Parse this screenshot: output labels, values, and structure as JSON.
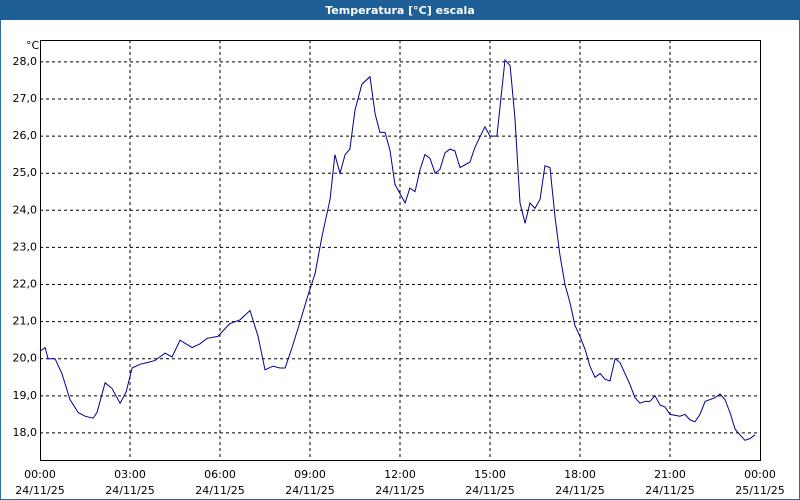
{
  "chart_data": {
    "type": "line",
    "title": "Temperatura [°C] escala",
    "y_unit": "°C",
    "x": [
      0,
      0.17,
      0.27,
      0.5,
      0.73,
      1,
      1.27,
      1.5,
      1.77,
      1.9,
      2.17,
      2.4,
      2.67,
      2.87,
      3.07,
      3.33,
      3.6,
      3.83,
      4.17,
      4.4,
      4.67,
      5.07,
      5.33,
      5.57,
      5.93,
      6.33,
      6.67,
      7,
      7.27,
      7.5,
      7.77,
      8,
      8.17,
      8.4,
      8.67,
      8.93,
      9.17,
      9.4,
      9.67,
      9.83,
      10,
      10.17,
      10.33,
      10.5,
      10.73,
      11,
      11.17,
      11.33,
      11.5,
      11.67,
      11.83,
      12.17,
      12.33,
      12.5,
      12.67,
      12.83,
      13,
      13.17,
      13.33,
      13.5,
      13.67,
      13.83,
      14,
      14.33,
      14.5,
      14.83,
      15,
      15.23,
      15.5,
      15.67,
      15.83,
      16,
      16.17,
      16.33,
      16.5,
      16.67,
      16.83,
      17,
      17.17,
      17.33,
      17.5,
      17.67,
      17.83,
      18,
      18.17,
      18.33,
      18.5,
      18.67,
      18.83,
      19,
      19.17,
      19.33,
      19.5,
      19.67,
      19.83,
      20,
      20.17,
      20.33,
      20.5,
      20.67,
      20.83,
      21,
      21.33,
      21.5,
      21.67,
      21.83,
      22,
      22.17,
      22.5,
      22.67,
      22.83,
      23,
      23.17,
      23.33,
      23.5,
      23.67,
      23.83
    ],
    "series": [
      {
        "name": "Temperatura",
        "color": "#000090",
        "values": [
          20.2,
          20.3,
          20.0,
          20.0,
          19.6,
          18.9,
          18.55,
          18.45,
          18.4,
          18.55,
          19.35,
          19.2,
          18.8,
          19.1,
          19.75,
          19.85,
          19.9,
          19.95,
          20.15,
          20.05,
          20.5,
          20.3,
          20.4,
          20.55,
          20.6,
          20.95,
          21.05,
          21.3,
          20.6,
          19.7,
          19.8,
          19.75,
          19.75,
          20.3,
          21.0,
          21.7,
          22.3,
          23.3,
          24.3,
          25.5,
          25.0,
          25.5,
          25.65,
          26.7,
          27.4,
          27.6,
          26.6,
          26.1,
          26.1,
          25.6,
          24.7,
          24.2,
          24.6,
          24.5,
          25.1,
          25.5,
          25.4,
          25.0,
          25.1,
          25.55,
          25.65,
          25.6,
          25.15,
          25.3,
          25.7,
          26.25,
          26.0,
          26.0,
          28.05,
          27.9,
          26.5,
          24.2,
          23.65,
          24.2,
          24.05,
          24.3,
          25.2,
          25.15,
          23.8,
          22.8,
          22.0,
          21.5,
          20.9,
          20.6,
          20.25,
          19.8,
          19.5,
          19.6,
          19.45,
          19.4,
          20.0,
          19.9,
          19.6,
          19.3,
          18.95,
          18.8,
          18.85,
          18.85,
          19.0,
          18.75,
          18.7,
          18.5,
          18.45,
          18.5,
          18.35,
          18.3,
          18.5,
          18.85,
          18.95,
          19.05,
          18.9,
          18.55,
          18.1,
          17.95,
          17.8,
          17.85,
          17.95
        ]
      }
    ],
    "xlim": [
      0,
      24
    ],
    "ylim": [
      17.27,
      28.59
    ],
    "xticks": [
      {
        "value": 0,
        "label": "00:00",
        "date": "24/11/25"
      },
      {
        "value": 3,
        "label": "03:00",
        "date": "24/11/25"
      },
      {
        "value": 6,
        "label": "06:00",
        "date": "24/11/25"
      },
      {
        "value": 9,
        "label": "09:00",
        "date": "24/11/25"
      },
      {
        "value": 12,
        "label": "12:00",
        "date": "24/11/25"
      },
      {
        "value": 15,
        "label": "15:00",
        "date": "24/11/25"
      },
      {
        "value": 18,
        "label": "18:00",
        "date": "24/11/25"
      },
      {
        "value": 21,
        "label": "21:00",
        "date": "24/11/25"
      },
      {
        "value": 24,
        "label": "00:00",
        "date": "25/11/25"
      }
    ],
    "yticks": [
      {
        "value": 18,
        "label": "18,0"
      },
      {
        "value": 19,
        "label": "19,0"
      },
      {
        "value": 20,
        "label": "20,0"
      },
      {
        "value": 21,
        "label": "21,0"
      },
      {
        "value": 22,
        "label": "22,0"
      },
      {
        "value": 23,
        "label": "23,0"
      },
      {
        "value": 24,
        "label": "24,0"
      },
      {
        "value": 25,
        "label": "25,0"
      },
      {
        "value": 26,
        "label": "26,0"
      },
      {
        "value": 27,
        "label": "27,0"
      },
      {
        "value": 28,
        "label": "28,0"
      }
    ],
    "grid": true
  }
}
